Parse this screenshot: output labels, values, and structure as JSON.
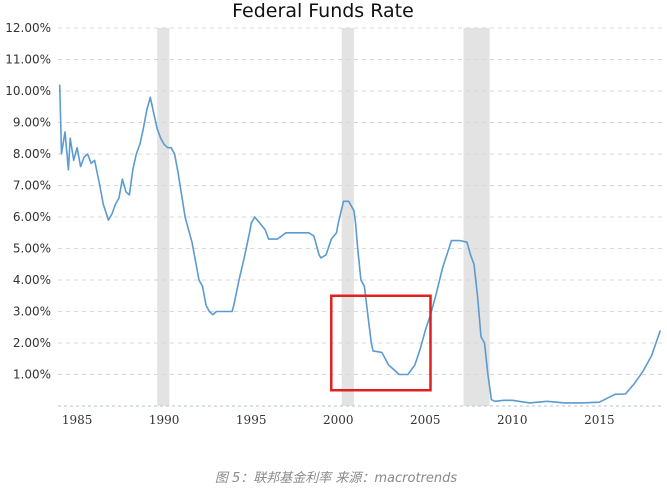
{
  "chart_data": {
    "type": "line",
    "title": "Federal Funds Rate",
    "xlabel": "",
    "ylabel": "",
    "xlim": [
      1983.9,
      2018.6
    ],
    "ylim": [
      0,
      12
    ],
    "y_ticks": [
      1,
      2,
      3,
      4,
      5,
      6,
      7,
      8,
      9,
      10,
      11,
      12
    ],
    "y_tick_labels": [
      "1.00%",
      "2.00%",
      "3.00%",
      "4.00%",
      "5.00%",
      "6.00%",
      "7.00%",
      "8.00%",
      "9.00%",
      "10.00%",
      "11.00%",
      "12.00%"
    ],
    "x_ticks": [
      1985,
      1990,
      1995,
      2000,
      2005,
      2010,
      2015
    ],
    "x_tick_labels": [
      "1985",
      "1990",
      "1995",
      "2000",
      "2005",
      "2010",
      "2015"
    ],
    "grid": true,
    "legend": "none",
    "series_color": "#5b9bd0",
    "recession_color": "#e3e3e3",
    "highlight_color": "#e02020",
    "recessions": [
      [
        1989.6,
        1990.3
      ],
      [
        2000.2,
        2000.9
      ],
      [
        2007.2,
        2008.7
      ]
    ],
    "highlight_box": {
      "x": [
        1999.6,
        2005.3
      ],
      "y": [
        0.5,
        3.5
      ]
    },
    "series": [
      {
        "x": [
          1984.0,
          1984.1,
          1984.3,
          1984.5,
          1984.6,
          1984.8,
          1985.0,
          1985.2,
          1985.4,
          1985.6,
          1985.8,
          1986.0,
          1986.3,
          1986.5,
          1986.8,
          1987.0,
          1987.2,
          1987.4,
          1987.6,
          1987.8,
          1988.0,
          1988.2,
          1988.4,
          1988.6,
          1988.8,
          1989.0,
          1989.2,
          1989.4,
          1989.6,
          1989.8,
          1990.0,
          1990.2,
          1990.4,
          1990.6,
          1990.8,
          1991.0,
          1991.2,
          1991.4,
          1991.6,
          1991.8,
          1992.0,
          1992.2,
          1992.4,
          1992.6,
          1992.8,
          1993.0,
          1993.3,
          1993.6,
          1993.9,
          1994.0,
          1994.3,
          1994.6,
          1994.9,
          1995.0,
          1995.2,
          1995.5,
          1995.8,
          1996.0,
          1996.5,
          1997.0,
          1997.5,
          1998.0,
          1998.3,
          1998.6,
          1998.9,
          1999.0,
          1999.3,
          1999.6,
          1999.9,
          2000.0,
          2000.3,
          2000.6,
          2000.9,
          2001.0,
          2001.1,
          2001.3,
          2001.5,
          2001.7,
          2001.9,
          2002.0,
          2002.5,
          2002.9,
          2003.0,
          2003.5,
          2004.0,
          2004.4,
          2004.7,
          2005.0,
          2005.3,
          2005.6,
          2006.0,
          2006.3,
          2006.5,
          2007.0,
          2007.4,
          2007.6,
          2007.8,
          2008.0,
          2008.2,
          2008.4,
          2008.6,
          2008.8,
          2009.0,
          2009.5,
          2010.0,
          2011.0,
          2012.0,
          2013.0,
          2014.0,
          2015.0,
          2015.9,
          2016.5,
          2017.0,
          2017.5,
          2018.0,
          2018.5
        ],
        "values": [
          10.2,
          8.0,
          8.7,
          7.5,
          8.5,
          7.8,
          8.2,
          7.6,
          7.9,
          8.0,
          7.7,
          7.8,
          7.0,
          6.4,
          5.9,
          6.1,
          6.4,
          6.6,
          7.2,
          6.8,
          6.7,
          7.5,
          8.0,
          8.3,
          8.8,
          9.4,
          9.8,
          9.3,
          8.8,
          8.5,
          8.3,
          8.2,
          8.2,
          8.0,
          7.4,
          6.7,
          6.0,
          5.6,
          5.2,
          4.6,
          4.0,
          3.8,
          3.2,
          3.0,
          2.9,
          3.0,
          3.0,
          3.0,
          3.0,
          3.2,
          4.0,
          4.7,
          5.5,
          5.8,
          6.0,
          5.8,
          5.6,
          5.3,
          5.3,
          5.5,
          5.5,
          5.5,
          5.5,
          5.4,
          4.8,
          4.7,
          4.8,
          5.3,
          5.5,
          5.8,
          6.5,
          6.5,
          6.2,
          5.8,
          5.1,
          4.0,
          3.8,
          2.9,
          2.0,
          1.75,
          1.7,
          1.3,
          1.25,
          1.0,
          1.0,
          1.3,
          1.8,
          2.4,
          2.9,
          3.5,
          4.4,
          4.9,
          5.25,
          5.25,
          5.2,
          4.8,
          4.5,
          3.5,
          2.2,
          2.0,
          1.0,
          0.2,
          0.15,
          0.18,
          0.18,
          0.1,
          0.15,
          0.1,
          0.1,
          0.12,
          0.37,
          0.38,
          0.7,
          1.1,
          1.6,
          2.4
        ]
      }
    ]
  },
  "caption": "图 5：联邦基金利率  来源：macrotrends"
}
